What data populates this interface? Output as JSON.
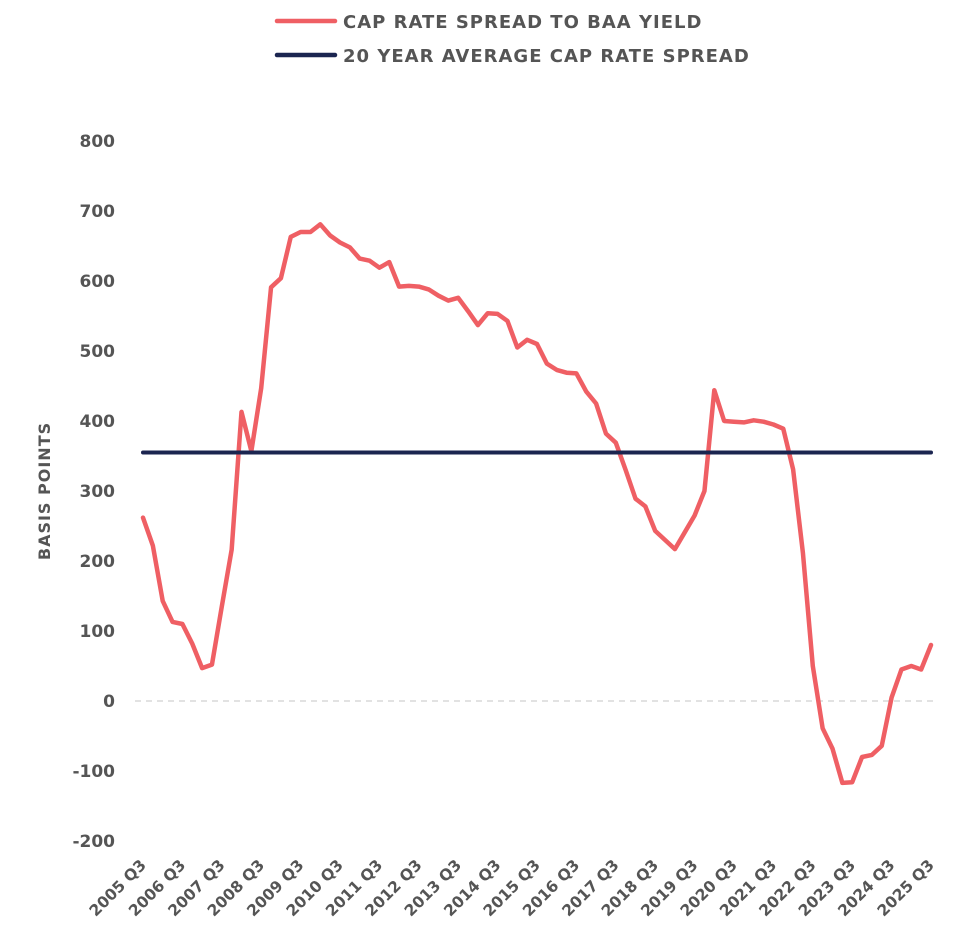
{
  "chart_data": {
    "type": "line",
    "title": "",
    "xlabel": "",
    "ylabel": "BASIS POINTS",
    "ylim": [
      -200,
      800
    ],
    "yticks": [
      "800",
      "700",
      "600",
      "500",
      "400",
      "300",
      "200",
      "100",
      "0",
      "-100",
      "-200"
    ],
    "ytick_values": [
      800,
      700,
      600,
      500,
      400,
      300,
      200,
      100,
      0,
      -100,
      -200
    ],
    "grid": false,
    "legend_position": "top",
    "x_tick_labels": [
      "2005 Q3",
      "2006 Q3",
      "2007 Q3",
      "2008 Q3",
      "2009 Q3",
      "2010 Q3",
      "2011 Q3",
      "2012 Q3",
      "2013 Q3",
      "2014 Q3",
      "2015 Q3",
      "2016 Q3",
      "2017 Q3",
      "2018 Q3",
      "2019 Q3",
      "2020 Q3",
      "2021 Q3",
      "2022 Q3",
      "2023 Q3",
      "2024 Q3",
      "2025 Q3"
    ],
    "series": [
      {
        "name": "CAP RATE SPREAD TO BAA YIELD",
        "color": "#ef5f64",
        "x": [
          "2005 Q3",
          "2005 Q4",
          "2006 Q1",
          "2006 Q2",
          "2006 Q3",
          "2006 Q4",
          "2007 Q1",
          "2007 Q2",
          "2007 Q3",
          "2007 Q4",
          "2008 Q1",
          "2008 Q2",
          "2008 Q3",
          "2008 Q4",
          "2009 Q1",
          "2009 Q2",
          "2009 Q3",
          "2009 Q4",
          "2010 Q1",
          "2010 Q2",
          "2010 Q3",
          "2010 Q4",
          "2011 Q1",
          "2011 Q2",
          "2011 Q3",
          "2011 Q4",
          "2012 Q1",
          "2012 Q2",
          "2012 Q3",
          "2012 Q4",
          "2013 Q1",
          "2013 Q2",
          "2013 Q3",
          "2013 Q4",
          "2014 Q1",
          "2014 Q2",
          "2014 Q3",
          "2014 Q4",
          "2015 Q1",
          "2015 Q2",
          "2015 Q3",
          "2015 Q4",
          "2016 Q1",
          "2016 Q2",
          "2016 Q3",
          "2016 Q4",
          "2017 Q1",
          "2017 Q2",
          "2017 Q3",
          "2017 Q4",
          "2018 Q1",
          "2018 Q2",
          "2018 Q3",
          "2018 Q4",
          "2019 Q1",
          "2019 Q2",
          "2019 Q3",
          "2019 Q4",
          "2020 Q1",
          "2020 Q2",
          "2020 Q3",
          "2020 Q4",
          "2021 Q1",
          "2021 Q2",
          "2021 Q3",
          "2021 Q4",
          "2022 Q1",
          "2022 Q2",
          "2022 Q3",
          "2022 Q4",
          "2023 Q1",
          "2023 Q2",
          "2023 Q3",
          "2023 Q4",
          "2024 Q1",
          "2024 Q2",
          "2024 Q3",
          "2024 Q4",
          "2025 Q1",
          "2025 Q2",
          "2025 Q3"
        ],
        "values": [
          262,
          222,
          143,
          113,
          110,
          82,
          47,
          52,
          135,
          216,
          413,
          357,
          447,
          591,
          604,
          663,
          670,
          670,
          681,
          665,
          655,
          648,
          632,
          629,
          619,
          627,
          592,
          593,
          592,
          588,
          579,
          572,
          576,
          557,
          537,
          554,
          553,
          543,
          505,
          516,
          510,
          482,
          473,
          469,
          468,
          442,
          425,
          382,
          369,
          330,
          289,
          278,
          243,
          230,
          217,
          241,
          265,
          300,
          444,
          400,
          399,
          398,
          401,
          399,
          395,
          389,
          331,
          211,
          50,
          -39,
          -68,
          -117,
          -116,
          -80,
          -77,
          -64,
          5,
          45,
          50,
          45,
          80
        ]
      },
      {
        "name": "20 YEAR AVERAGE CAP RATE SPREAD",
        "color": "#1b2550",
        "x": [
          "2005 Q3",
          "2025 Q3"
        ],
        "values": [
          355,
          355
        ]
      }
    ]
  }
}
